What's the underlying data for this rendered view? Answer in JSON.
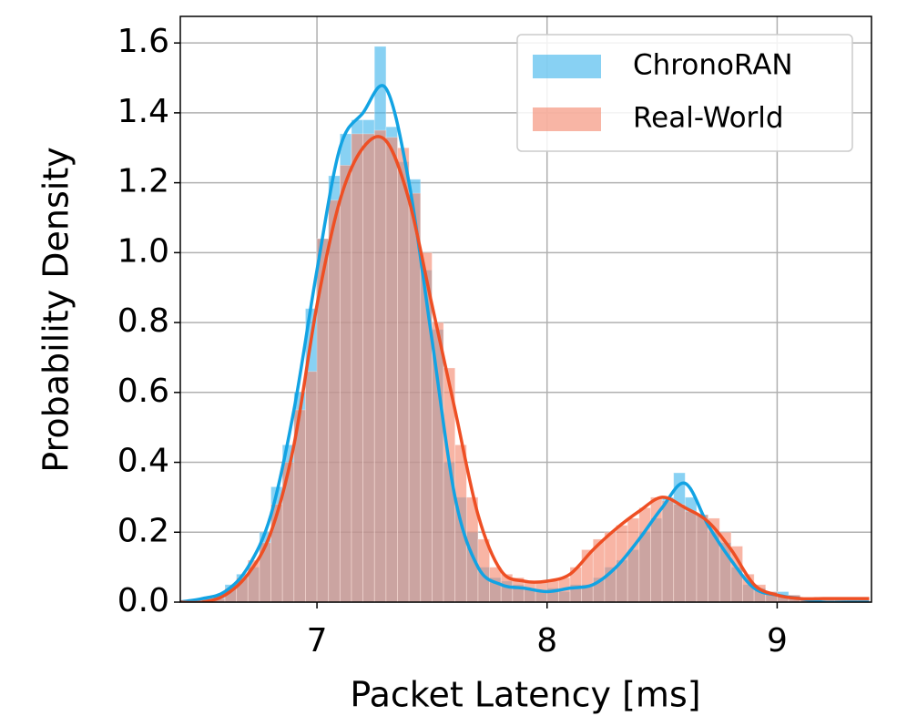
{
  "chart_data": {
    "type": "histogram",
    "xlabel": "Packet Latency [ms]",
    "ylabel": "Probability Density",
    "xlim": [
      6.406,
      9.41
    ],
    "ylim": [
      0,
      1.676
    ],
    "xticks": [
      7,
      8,
      9
    ],
    "yticks": [
      {
        "value": 0,
        "label": "0.0"
      },
      0.2,
      0.4,
      0.6,
      0.8,
      {
        "value": 1,
        "label": "1.0"
      },
      1.2,
      1.4,
      1.6
    ],
    "grid": true,
    "legend": "upper right",
    "bins": [
      6.4,
      6.45,
      6.5,
      6.55,
      6.6,
      6.65,
      6.7,
      6.75,
      6.8,
      6.85,
      6.9,
      6.95,
      7.0,
      7.05,
      7.1,
      7.15,
      7.2,
      7.25,
      7.3,
      7.35,
      7.4,
      7.45,
      7.5,
      7.55,
      7.6,
      7.65,
      7.7,
      7.75,
      7.8,
      7.85,
      7.9,
      7.95,
      8.0,
      8.05,
      8.1,
      8.15,
      8.2,
      8.25,
      8.3,
      8.35,
      8.4,
      8.45,
      8.5,
      8.55,
      8.6,
      8.65,
      8.7,
      8.75,
      8.8,
      8.85,
      8.9,
      8.95,
      9.0,
      9.05,
      9.1,
      9.15,
      9.2,
      9.25,
      9.3,
      9.35,
      9.4
    ],
    "kde_x": [
      6.4,
      6.5,
      6.6,
      6.7,
      6.8,
      6.9,
      7.0,
      7.1,
      7.2,
      7.3,
      7.4,
      7.5,
      7.6,
      7.7,
      7.8,
      7.9,
      8.0,
      8.1,
      8.2,
      8.3,
      8.4,
      8.5,
      8.6,
      8.7,
      8.8,
      8.9,
      9.0,
      9.1,
      9.2,
      9.3,
      9.4
    ],
    "series": [
      {
        "name": "ChronoRAN",
        "color": "#12a3e3",
        "hist_color": "#3fb4ec",
        "values": [
          0,
          0,
          0.01,
          0.02,
          0.05,
          0.08,
          0.1,
          0.2,
          0.33,
          0.45,
          0.6,
          0.84,
          1.04,
          1.22,
          1.34,
          1.38,
          1.38,
          1.59,
          1.36,
          1.26,
          1.21,
          0.95,
          0.78,
          0.4,
          0.3,
          0.2,
          0.1,
          0.07,
          0.06,
          0.05,
          0.04,
          0.03,
          0.04,
          0.03,
          0.05,
          0.05,
          0.07,
          0.1,
          0.12,
          0.15,
          0.2,
          0.24,
          0.3,
          0.37,
          0.3,
          0.25,
          0.2,
          0.17,
          0.1,
          0.05,
          0.04,
          0.03,
          0.03,
          0.02,
          0.01,
          0,
          0,
          0,
          0,
          0
        ],
        "kde": [
          0,
          0.01,
          0.03,
          0.1,
          0.25,
          0.55,
          0.95,
          1.3,
          1.4,
          1.47,
          1.2,
          0.75,
          0.3,
          0.1,
          0.05,
          0.04,
          0.03,
          0.04,
          0.05,
          0.1,
          0.18,
          0.27,
          0.34,
          0.22,
          0.12,
          0.04,
          0.02,
          0.01,
          0,
          0,
          0
        ]
      },
      {
        "name": "Real-World",
        "color": "#ee4f24",
        "hist_color": "#f3886d",
        "values": [
          0,
          0,
          0,
          0.01,
          0.04,
          0.07,
          0.12,
          0.17,
          0.28,
          0.4,
          0.55,
          0.66,
          1.04,
          1.15,
          1.25,
          1.34,
          1.34,
          1.35,
          1.33,
          1.3,
          1.17,
          1.0,
          0.8,
          0.67,
          0.45,
          0.3,
          0.18,
          0.1,
          0.08,
          0.07,
          0.06,
          0.06,
          0.06,
          0.07,
          0.1,
          0.15,
          0.18,
          0.2,
          0.22,
          0.24,
          0.27,
          0.3,
          0.29,
          0.28,
          0.26,
          0.25,
          0.24,
          0.2,
          0.16,
          0.08,
          0.05,
          0.03,
          0.02,
          0.02,
          0.01,
          0.01,
          0.01,
          0.01,
          0.01,
          0.01
        ],
        "kde": [
          0,
          0,
          0.02,
          0.08,
          0.2,
          0.45,
          0.85,
          1.15,
          1.3,
          1.32,
          1.15,
          0.85,
          0.55,
          0.25,
          0.09,
          0.06,
          0.06,
          0.08,
          0.15,
          0.21,
          0.26,
          0.3,
          0.27,
          0.23,
          0.15,
          0.05,
          0.02,
          0.01,
          0.01,
          0.01,
          0.01
        ]
      }
    ]
  }
}
